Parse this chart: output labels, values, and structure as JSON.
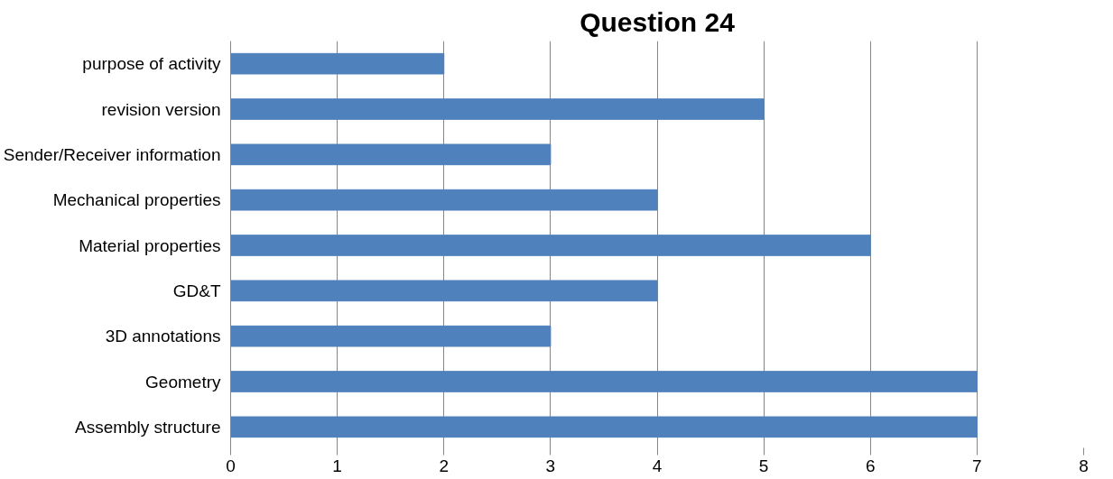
{
  "chart_data": {
    "type": "bar",
    "orientation": "horizontal",
    "title": "Question 24",
    "categories": [
      "purpose of activity",
      "revision version",
      "Sender/Receiver information",
      "Mechanical properties",
      "Material properties",
      "GD&T",
      "3D annotations",
      "Geometry",
      "Assembly structure"
    ],
    "values": [
      2,
      5,
      3,
      4,
      6,
      4,
      3,
      7,
      7
    ],
    "color": "#4f81bd",
    "xlim": [
      0,
      8
    ],
    "xticks": [
      0,
      1,
      2,
      3,
      4,
      5,
      6,
      7,
      8
    ],
    "grid": "x"
  }
}
